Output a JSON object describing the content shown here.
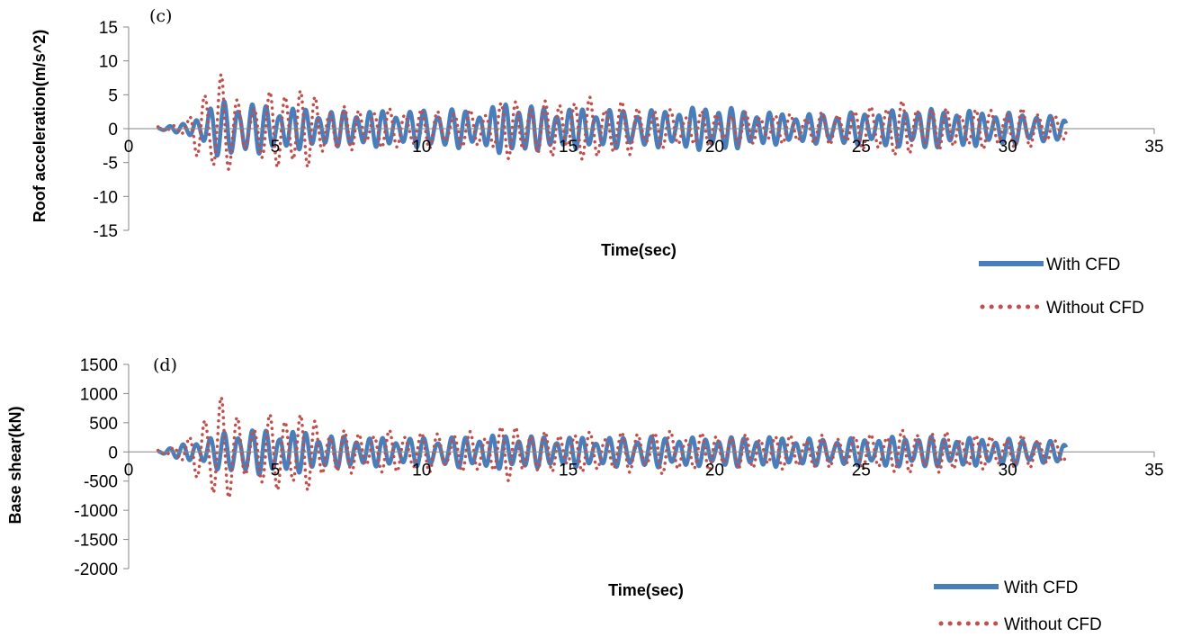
{
  "chart_data": [
    {
      "type": "line",
      "panel_label": "(c)",
      "title": "",
      "xlabel": "Time(sec)",
      "ylabel": "Roof acceleration(m/s^2)",
      "xlim": [
        0,
        35
      ],
      "ylim": [
        -15,
        15
      ],
      "x_ticks": [
        "0",
        "5",
        "10",
        "15",
        "20",
        "25",
        "30",
        "35"
      ],
      "y_ticks": [
        "15",
        "10",
        "5",
        "0",
        "-5",
        "-10",
        "-15"
      ],
      "grid": false,
      "legend_position": "bottom-right",
      "series": [
        {
          "name": "With CFD",
          "style": "solid",
          "color": "#4a7ebb",
          "x": [
            1.0,
            2.0,
            2.5,
            3.0,
            3.5,
            4.0,
            5.0,
            6.0,
            7.0,
            8.0,
            9.0,
            10.0,
            11.0,
            12.0,
            13.0,
            13.5,
            14.0,
            15.0,
            16.0,
            17.0,
            18.0,
            19.0,
            20.0,
            21.0,
            22.0,
            23.0,
            24.0,
            25.0,
            26.0,
            27.0,
            28.0,
            29.0,
            30.0,
            31.0,
            32.0
          ],
          "envelope": [
            0.2,
            0.8,
            2.5,
            4.0,
            4.3,
            4.0,
            3.3,
            3.0,
            2.6,
            2.8,
            2.6,
            2.8,
            3.0,
            2.6,
            4.2,
            3.6,
            3.2,
            3.0,
            3.0,
            2.8,
            2.8,
            3.0,
            3.5,
            2.8,
            2.4,
            2.2,
            2.3,
            2.5,
            2.7,
            3.0,
            2.8,
            2.6,
            2.4,
            2.2,
            1.5
          ]
        },
        {
          "name": "Without CFD",
          "style": "dotted",
          "color": "#c0504d",
          "x": [
            1.0,
            2.0,
            2.5,
            3.0,
            3.2,
            3.5,
            4.0,
            4.5,
            5.0,
            5.5,
            6.0,
            6.5,
            7.0,
            8.0,
            9.0,
            10.0,
            11.0,
            12.0,
            13.0,
            14.0,
            15.0,
            16.0,
            17.0,
            18.0,
            19.0,
            20.0,
            21.0,
            22.0,
            23.0,
            24.0,
            25.0,
            26.0,
            27.0,
            28.0,
            29.0,
            30.0,
            31.0,
            32.0
          ],
          "envelope": [
            0.3,
            1.0,
            6.0,
            9.0,
            9.0,
            5.0,
            4.0,
            4.5,
            6.0,
            7.0,
            6.0,
            4.5,
            3.5,
            3.0,
            3.0,
            3.0,
            2.8,
            2.8,
            4.5,
            4.0,
            4.5,
            4.8,
            4.0,
            3.0,
            2.8,
            2.5,
            2.4,
            2.2,
            2.3,
            2.5,
            3.0,
            4.5,
            3.5,
            3.0,
            3.0,
            3.0,
            3.0,
            1.5
          ]
        }
      ]
    },
    {
      "type": "line",
      "panel_label": "(d)",
      "title": "",
      "xlabel": "Time(sec)",
      "ylabel": "Base shear(kN)",
      "xlim": [
        0,
        35
      ],
      "ylim": [
        -2000,
        1500
      ],
      "x_ticks": [
        "0",
        "5",
        "10",
        "15",
        "20",
        "25",
        "30",
        "35"
      ],
      "y_ticks": [
        "1500",
        "1000",
        "500",
        "0",
        "-500",
        "-1000",
        "-1500",
        "-2000"
      ],
      "grid": false,
      "legend_position": "bottom-right",
      "series": [
        {
          "name": "With CFD",
          "style": "solid",
          "color": "#4a7ebb",
          "x": [
            1.0,
            2.0,
            3.0,
            3.5,
            4.0,
            5.0,
            6.0,
            7.0,
            8.0,
            9.0,
            10.0,
            11.0,
            12.0,
            13.0,
            14.0,
            15.0,
            16.0,
            17.0,
            18.0,
            19.0,
            20.0,
            21.0,
            22.0,
            23.0,
            24.0,
            25.0,
            26.0,
            27.0,
            28.0,
            29.0,
            30.0,
            31.0,
            32.0
          ],
          "envelope": [
            20,
            150,
            300,
            380,
            400,
            380,
            350,
            280,
            260,
            240,
            250,
            260,
            280,
            300,
            270,
            260,
            250,
            260,
            270,
            250,
            250,
            260,
            260,
            240,
            230,
            240,
            260,
            270,
            250,
            240,
            230,
            220,
            150
          ]
        },
        {
          "name": "Without CFD",
          "style": "dotted",
          "color": "#c0504d",
          "x": [
            1.0,
            2.0,
            2.5,
            2.9,
            3.2,
            3.5,
            4.0,
            4.5,
            5.0,
            5.5,
            6.0,
            6.5,
            7.0,
            8.0,
            9.0,
            10.0,
            11.0,
            12.0,
            13.0,
            14.0,
            15.0,
            16.0,
            17.0,
            18.0,
            19.0,
            20.0,
            21.0,
            22.0,
            23.0,
            24.0,
            25.0,
            26.0,
            27.0,
            28.0,
            29.0,
            30.0,
            31.0,
            32.0
          ],
          "envelope": [
            30,
            200,
            600,
            1100,
            1050,
            700,
            550,
            550,
            700,
            750,
            700,
            500,
            400,
            350,
            380,
            350,
            350,
            350,
            500,
            350,
            350,
            350,
            350,
            400,
            350,
            320,
            300,
            300,
            300,
            280,
            300,
            380,
            380,
            350,
            300,
            280,
            300,
            150
          ]
        }
      ]
    }
  ],
  "legend": {
    "with_cfd": "With CFD",
    "without_cfd": "Without CFD"
  }
}
